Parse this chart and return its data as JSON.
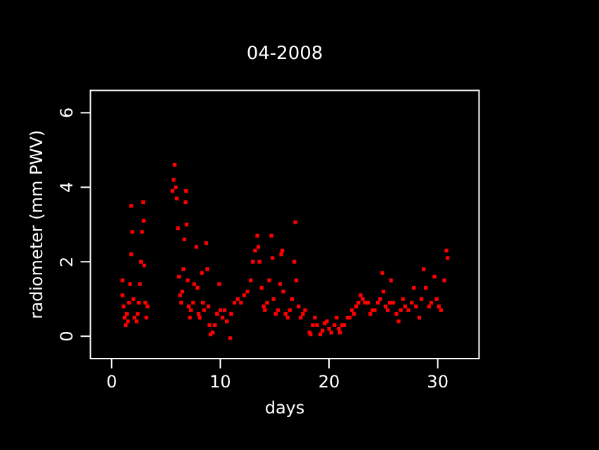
{
  "chart_data": {
    "type": "scatter",
    "title": "04-2008",
    "xlabel": "days",
    "ylabel": "radiometer (mm PWV)",
    "xlim": [
      -1.95,
      33.8
    ],
    "ylim": [
      -0.6,
      6.6
    ],
    "xticks": [
      0,
      10,
      20,
      30
    ],
    "yticks": [
      0,
      2,
      4,
      6
    ],
    "marker": "square",
    "series": [
      {
        "color": "#ff0000",
        "x": [
          1.0,
          1.0,
          1.1,
          1.2,
          1.3,
          1.4,
          1.5,
          1.6,
          1.7,
          1.8,
          1.8,
          1.9,
          2.0,
          2.1,
          2.3,
          2.4,
          2.5,
          2.6,
          2.7,
          2.8,
          2.9,
          2.95,
          3.0,
          3.1,
          3.2,
          3.3,
          5.6,
          5.7,
          5.8,
          5.9,
          6.0,
          6.1,
          6.2,
          6.3,
          6.4,
          6.5,
          6.6,
          6.7,
          6.8,
          6.85,
          6.9,
          7.0,
          7.1,
          7.2,
          7.3,
          7.5,
          7.6,
          7.8,
          7.9,
          8.0,
          8.1,
          8.3,
          8.4,
          8.5,
          8.7,
          8.8,
          8.9,
          9.0,
          9.1,
          9.3,
          9.5,
          9.7,
          9.9,
          10.0,
          10.2,
          10.4,
          10.6,
          10.9,
          11.0,
          11.3,
          11.6,
          11.9,
          12.2,
          12.5,
          12.8,
          13.0,
          13.2,
          13.4,
          13.5,
          13.6,
          13.8,
          14.0,
          14.1,
          14.3,
          14.5,
          14.7,
          14.8,
          14.9,
          15.1,
          15.3,
          15.5,
          15.6,
          15.7,
          15.8,
          16.0,
          16.2,
          16.4,
          16.6,
          16.8,
          16.9,
          17.0,
          17.2,
          17.4,
          17.6,
          17.8,
          18.2,
          18.3,
          18.5,
          18.7,
          18.9,
          19.2,
          19.4,
          19.6,
          19.8,
          20.0,
          20.2,
          20.5,
          20.7,
          20.9,
          21.0,
          21.2,
          21.4,
          21.7,
          21.9,
          22.1,
          22.3,
          22.5,
          22.7,
          22.9,
          23.1,
          23.3,
          23.6,
          23.8,
          24.0,
          24.2,
          24.5,
          24.7,
          24.9,
          25.0,
          25.2,
          25.4,
          25.6,
          25.7,
          25.9,
          26.2,
          26.4,
          26.6,
          26.8,
          27.0,
          27.3,
          27.6,
          27.8,
          28.0,
          28.3,
          28.5,
          28.7,
          28.9,
          29.2,
          29.4,
          29.7,
          29.9,
          30.1,
          30.3,
          30.6,
          30.8,
          30.9
        ],
        "values": [
          1.5,
          1.1,
          0.8,
          0.5,
          0.3,
          0.6,
          0.4,
          0.9,
          1.4,
          2.2,
          3.5,
          2.8,
          1.0,
          0.5,
          0.4,
          0.6,
          0.9,
          1.4,
          2.0,
          2.8,
          3.6,
          3.1,
          1.9,
          0.9,
          0.5,
          0.8,
          3.9,
          4.2,
          4.6,
          4.0,
          3.7,
          2.9,
          1.6,
          1.1,
          0.9,
          1.2,
          1.8,
          2.6,
          3.6,
          3.9,
          3.0,
          1.5,
          0.8,
          0.5,
          0.7,
          0.9,
          1.4,
          2.4,
          1.3,
          0.6,
          0.5,
          1.7,
          0.9,
          0.7,
          2.5,
          1.8,
          0.8,
          0.3,
          0.05,
          0.1,
          0.3,
          0.6,
          1.4,
          0.7,
          0.5,
          0.7,
          0.4,
          -0.05,
          0.6,
          0.9,
          1.0,
          0.9,
          1.1,
          1.2,
          1.5,
          2.0,
          2.3,
          2.7,
          2.4,
          2.0,
          1.3,
          0.8,
          0.7,
          0.9,
          1.5,
          2.7,
          2.1,
          1.0,
          0.6,
          0.7,
          1.4,
          2.2,
          2.3,
          1.2,
          0.6,
          0.5,
          0.7,
          1.0,
          2.0,
          3.06,
          1.5,
          0.8,
          0.5,
          0.6,
          0.7,
          0.1,
          0.05,
          0.3,
          0.5,
          0.3,
          0.05,
          0.15,
          0.35,
          0.4,
          0.2,
          0.1,
          0.3,
          0.5,
          0.2,
          0.1,
          0.3,
          0.3,
          0.5,
          0.5,
          0.7,
          0.6,
          0.8,
          0.9,
          1.1,
          1.0,
          0.9,
          0.9,
          0.6,
          0.7,
          0.7,
          0.9,
          1.0,
          1.7,
          1.2,
          0.8,
          0.7,
          0.9,
          1.5,
          0.9,
          0.6,
          0.4,
          0.7,
          1.0,
          0.8,
          0.7,
          0.9,
          1.3,
          0.8,
          0.5,
          1.0,
          1.8,
          1.3,
          0.8,
          0.9,
          1.6,
          1.0,
          0.8,
          0.7,
          1.5,
          2.3,
          2.1
        ]
      }
    ]
  }
}
